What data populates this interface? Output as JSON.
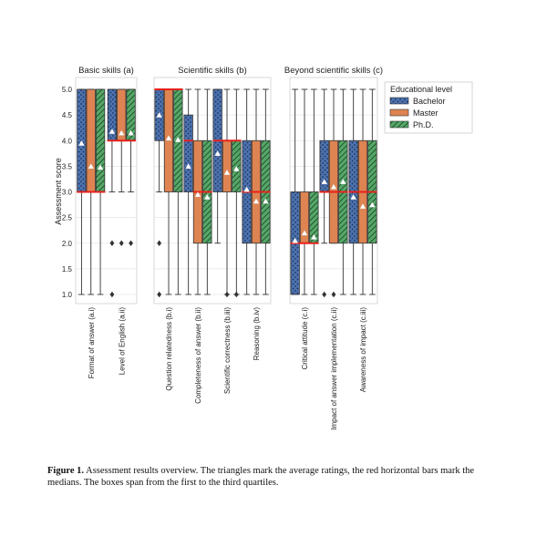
{
  "chart_data": {
    "type": "box",
    "ylabel": "Assessment score",
    "ylim": [
      1.0,
      5.0
    ],
    "yticks": [
      "1.0",
      "1.5",
      "2.0",
      "2.5",
      "3.0",
      "3.5",
      "4.0",
      "4.5",
      "5.0"
    ],
    "grid": true,
    "legend_title": "Educational level",
    "legend_position": "top-right",
    "series": [
      {
        "name": "Bachelor",
        "color": "#4C72B0",
        "hatch": "dots"
      },
      {
        "name": "Master",
        "color": "#DD8452",
        "hatch": "none"
      },
      {
        "name": "Ph.D.",
        "color": "#55A868",
        "hatch": "diagonal"
      }
    ],
    "panels": [
      {
        "title": "Basic skills (a)",
        "categories": [
          {
            "label": "Format of answer (a.i)",
            "boxes": [
              {
                "q1": 3.0,
                "median": 3.0,
                "q3": 5.0,
                "whisker_low": 1.0,
                "whisker_high": 5.0,
                "mean": 3.95,
                "outliers": []
              },
              {
                "q1": 3.0,
                "median": 3.0,
                "q3": 5.0,
                "whisker_low": 1.0,
                "whisker_high": 5.0,
                "mean": 3.5,
                "outliers": []
              },
              {
                "q1": 3.0,
                "median": 3.0,
                "q3": 5.0,
                "whisker_low": 1.0,
                "whisker_high": 5.0,
                "mean": 3.48,
                "outliers": []
              }
            ]
          },
          {
            "label": "Level of English (a.ii)",
            "boxes": [
              {
                "q1": 4.0,
                "median": 4.0,
                "q3": 5.0,
                "whisker_low": 3.0,
                "whisker_high": 5.0,
                "mean": 4.18,
                "outliers": [
                  2.0,
                  1.0
                ]
              },
              {
                "q1": 4.0,
                "median": 4.0,
                "q3": 5.0,
                "whisker_low": 3.0,
                "whisker_high": 5.0,
                "mean": 4.15,
                "outliers": [
                  2.0
                ]
              },
              {
                "q1": 4.0,
                "median": 4.0,
                "q3": 5.0,
                "whisker_low": 3.0,
                "whisker_high": 5.0,
                "mean": 4.15,
                "outliers": [
                  2.0
                ]
              }
            ]
          }
        ]
      },
      {
        "title": "Scientific skills (b)",
        "categories": [
          {
            "label": "Question relatedness (b.i)",
            "boxes": [
              {
                "q1": 4.0,
                "median": 5.0,
                "q3": 5.0,
                "whisker_low": 3.0,
                "whisker_high": 5.0,
                "mean": 4.5,
                "outliers": [
                  2.0,
                  1.0
                ]
              },
              {
                "q1": 3.0,
                "median": 5.0,
                "q3": 5.0,
                "whisker_low": 1.0,
                "whisker_high": 5.0,
                "mean": 4.05,
                "outliers": []
              },
              {
                "q1": 3.0,
                "median": 5.0,
                "q3": 5.0,
                "whisker_low": 1.0,
                "whisker_high": 5.0,
                "mean": 4.02,
                "outliers": []
              }
            ]
          },
          {
            "label": "Completeness of answer (b.ii)",
            "boxes": [
              {
                "q1": 3.0,
                "median": 4.0,
                "q3": 4.5,
                "whisker_low": 1.0,
                "whisker_high": 5.0,
                "mean": 3.5,
                "outliers": []
              },
              {
                "q1": 2.0,
                "median": 3.0,
                "q3": 4.0,
                "whisker_low": 1.0,
                "whisker_high": 5.0,
                "mean": 2.95,
                "outliers": []
              },
              {
                "q1": 2.0,
                "median": 3.0,
                "q3": 4.0,
                "whisker_low": 1.0,
                "whisker_high": 5.0,
                "mean": 2.9,
                "outliers": []
              }
            ]
          },
          {
            "label": "Scientific correctness (b.iii)",
            "boxes": [
              {
                "q1": 3.0,
                "median": 4.0,
                "q3": 5.0,
                "whisker_low": 2.0,
                "whisker_high": 5.0,
                "mean": 3.75,
                "outliers": []
              },
              {
                "q1": 3.0,
                "median": 4.0,
                "q3": 4.0,
                "whisker_low": 1.0,
                "whisker_high": 5.0,
                "mean": 3.38,
                "outliers": [
                  1.0
                ]
              },
              {
                "q1": 3.0,
                "median": 4.0,
                "q3": 4.0,
                "whisker_low": 1.0,
                "whisker_high": 5.0,
                "mean": 3.45,
                "outliers": [
                  1.0
                ]
              }
            ]
          },
          {
            "label": "Reasoning (b.iv)",
            "boxes": [
              {
                "q1": 2.0,
                "median": 3.0,
                "q3": 4.0,
                "whisker_low": 1.0,
                "whisker_high": 5.0,
                "mean": 3.05,
                "outliers": []
              },
              {
                "q1": 2.0,
                "median": 3.0,
                "q3": 4.0,
                "whisker_low": 1.0,
                "whisker_high": 5.0,
                "mean": 2.82,
                "outliers": []
              },
              {
                "q1": 2.0,
                "median": 3.0,
                "q3": 4.0,
                "whisker_low": 1.0,
                "whisker_high": 5.0,
                "mean": 2.82,
                "outliers": []
              }
            ]
          }
        ]
      },
      {
        "title": "Beyond scientific skills (c)",
        "categories": [
          {
            "label": "Critical attitude (c.i)",
            "boxes": [
              {
                "q1": 1.0,
                "median": 2.0,
                "q3": 3.0,
                "whisker_low": 1.0,
                "whisker_high": 5.0,
                "mean": 2.05,
                "outliers": []
              },
              {
                "q1": 2.0,
                "median": 2.0,
                "q3": 3.0,
                "whisker_low": 1.0,
                "whisker_high": 5.0,
                "mean": 2.2,
                "outliers": []
              },
              {
                "q1": 2.0,
                "median": 2.0,
                "q3": 3.0,
                "whisker_low": 1.0,
                "whisker_high": 5.0,
                "mean": 2.12,
                "outliers": []
              }
            ]
          },
          {
            "label": "Impact of answer implementation (c.ii)",
            "boxes": [
              {
                "q1": 3.0,
                "median": 3.0,
                "q3": 4.0,
                "whisker_low": 2.0,
                "whisker_high": 5.0,
                "mean": 3.2,
                "outliers": [
                  1.0
                ]
              },
              {
                "q1": 2.0,
                "median": 3.0,
                "q3": 4.0,
                "whisker_low": 2.0,
                "whisker_high": 5.0,
                "mean": 3.1,
                "outliers": [
                  1.0
                ]
              },
              {
                "q1": 2.0,
                "median": 3.0,
                "q3": 4.0,
                "whisker_low": 1.0,
                "whisker_high": 5.0,
                "mean": 3.2,
                "outliers": []
              }
            ]
          },
          {
            "label": "Awareness of impact (c.iii)",
            "boxes": [
              {
                "q1": 2.0,
                "median": 3.0,
                "q3": 4.0,
                "whisker_low": 1.0,
                "whisker_high": 5.0,
                "mean": 2.9,
                "outliers": []
              },
              {
                "q1": 2.0,
                "median": 3.0,
                "q3": 4.0,
                "whisker_low": 1.0,
                "whisker_high": 5.0,
                "mean": 2.72,
                "outliers": []
              },
              {
                "q1": 2.0,
                "median": 3.0,
                "q3": 4.0,
                "whisker_low": 1.0,
                "whisker_high": 5.0,
                "mean": 2.75,
                "outliers": []
              }
            ]
          }
        ]
      }
    ]
  },
  "caption": {
    "label": "Figure 1.",
    "text": "Assessment results overview. The triangles mark the average ratings, the red horizontal bars mark the medians. The boxes span from the first to the third quartiles."
  }
}
